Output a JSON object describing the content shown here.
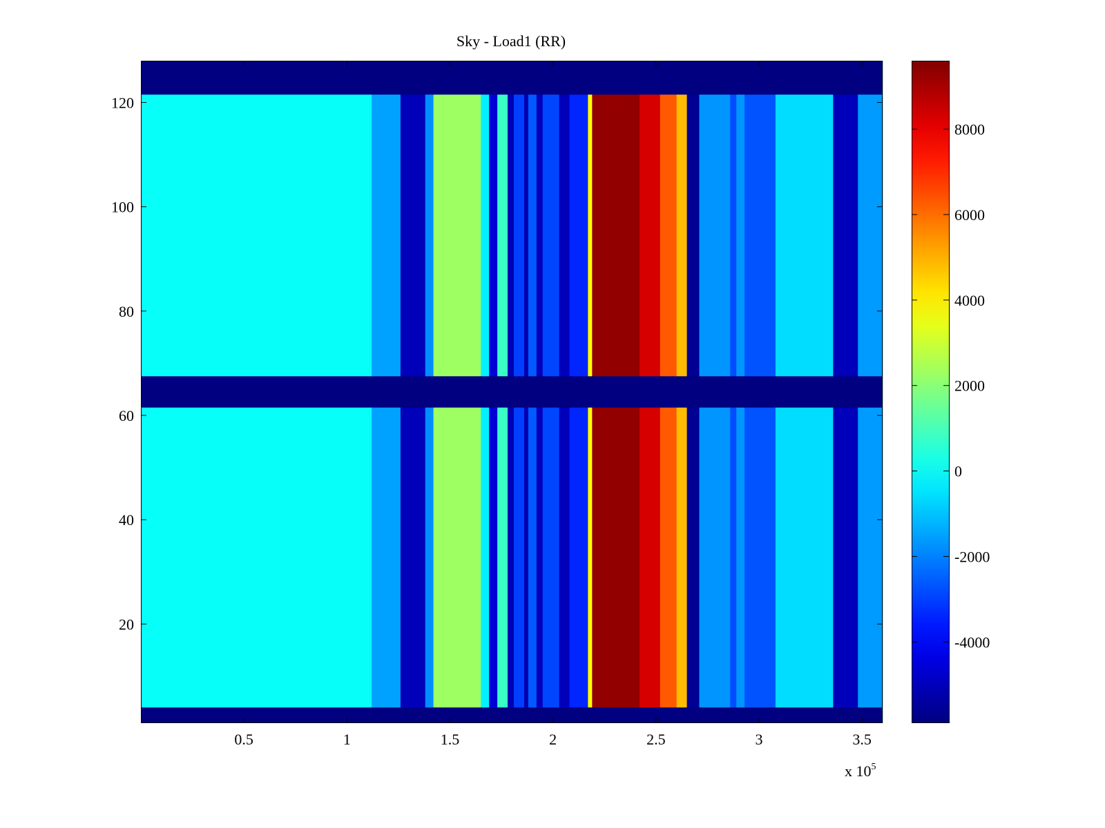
{
  "chart_data": {
    "type": "heatmap",
    "title": "Sky - Load1 (RR)",
    "xlabel": "",
    "ylabel": "",
    "x_multiplier_label": "x 10",
    "x_multiplier_exponent": "5",
    "xlim": [
      0,
      3.6
    ],
    "ylim": [
      1,
      128
    ],
    "xticks": [
      {
        "value": 0.5,
        "label": "0.5"
      },
      {
        "value": 1,
        "label": "1"
      },
      {
        "value": 1.5,
        "label": "1.5"
      },
      {
        "value": 2,
        "label": "2"
      },
      {
        "value": 2.5,
        "label": "2.5"
      },
      {
        "value": 3,
        "label": "3"
      },
      {
        "value": 3.5,
        "label": "3.5"
      }
    ],
    "yticks": [
      {
        "value": 20,
        "label": "20"
      },
      {
        "value": 40,
        "label": "40"
      },
      {
        "value": 60,
        "label": "60"
      },
      {
        "value": 80,
        "label": "80"
      },
      {
        "value": 100,
        "label": "100"
      },
      {
        "value": 120,
        "label": "120"
      }
    ],
    "colorbar": {
      "colormap": "jet",
      "range": [
        -5900,
        9600
      ],
      "ticks": [
        {
          "value": -4000,
          "label": "-4000"
        },
        {
          "value": -2000,
          "label": "-2000"
        },
        {
          "value": 0,
          "label": "0"
        },
        {
          "value": 2000,
          "label": "2000"
        },
        {
          "value": 4000,
          "label": "4000"
        },
        {
          "value": 6000,
          "label": "6000"
        },
        {
          "value": 8000,
          "label": "8000"
        }
      ]
    },
    "masked_row_ranges": [
      [
        1,
        4
      ],
      [
        61.5,
        67.5
      ],
      [
        121.5,
        128
      ]
    ],
    "column_bands": [
      {
        "x": [
          0.0,
          1.12
        ],
        "value": 0
      },
      {
        "x": [
          1.12,
          1.26
        ],
        "value": -1500
      },
      {
        "x": [
          1.26,
          1.38
        ],
        "value": -5000
      },
      {
        "x": [
          1.38,
          1.42
        ],
        "value": -1800
      },
      {
        "x": [
          1.42,
          1.65
        ],
        "value": 2300
      },
      {
        "x": [
          1.65,
          1.69
        ],
        "value": -300
      },
      {
        "x": [
          1.69,
          1.73
        ],
        "value": -4600
      },
      {
        "x": [
          1.73,
          1.78
        ],
        "value": 800
      },
      {
        "x": [
          1.78,
          1.81
        ],
        "value": -5100
      },
      {
        "x": [
          1.81,
          1.86
        ],
        "value": -3000
      },
      {
        "x": [
          1.86,
          1.88
        ],
        "value": -5200
      },
      {
        "x": [
          1.88,
          1.92
        ],
        "value": -2600
      },
      {
        "x": [
          1.92,
          1.95
        ],
        "value": -5000
      },
      {
        "x": [
          1.95,
          2.03
        ],
        "value": -2900
      },
      {
        "x": [
          2.03,
          2.08
        ],
        "value": -5000
      },
      {
        "x": [
          2.08,
          2.17
        ],
        "value": -3400
      },
      {
        "x": [
          2.17,
          2.19
        ],
        "value": 3800
      },
      {
        "x": [
          2.19,
          2.42
        ],
        "value": 9300
      },
      {
        "x": [
          2.42,
          2.52
        ],
        "value": 8300
      },
      {
        "x": [
          2.52,
          2.6
        ],
        "value": 6300
      },
      {
        "x": [
          2.6,
          2.65
        ],
        "value": 4800
      },
      {
        "x": [
          2.65,
          2.71
        ],
        "value": -5600
      },
      {
        "x": [
          2.71,
          2.86
        ],
        "value": -1700
      },
      {
        "x": [
          2.86,
          2.89
        ],
        "value": -2800
      },
      {
        "x": [
          2.89,
          2.93
        ],
        "value": -1700
      },
      {
        "x": [
          2.93,
          3.08
        ],
        "value": -2700
      },
      {
        "x": [
          3.08,
          3.36
        ],
        "value": -600
      },
      {
        "x": [
          3.36,
          3.48
        ],
        "value": -5000
      },
      {
        "x": [
          3.48,
          3.6
        ],
        "value": -1600
      }
    ]
  }
}
